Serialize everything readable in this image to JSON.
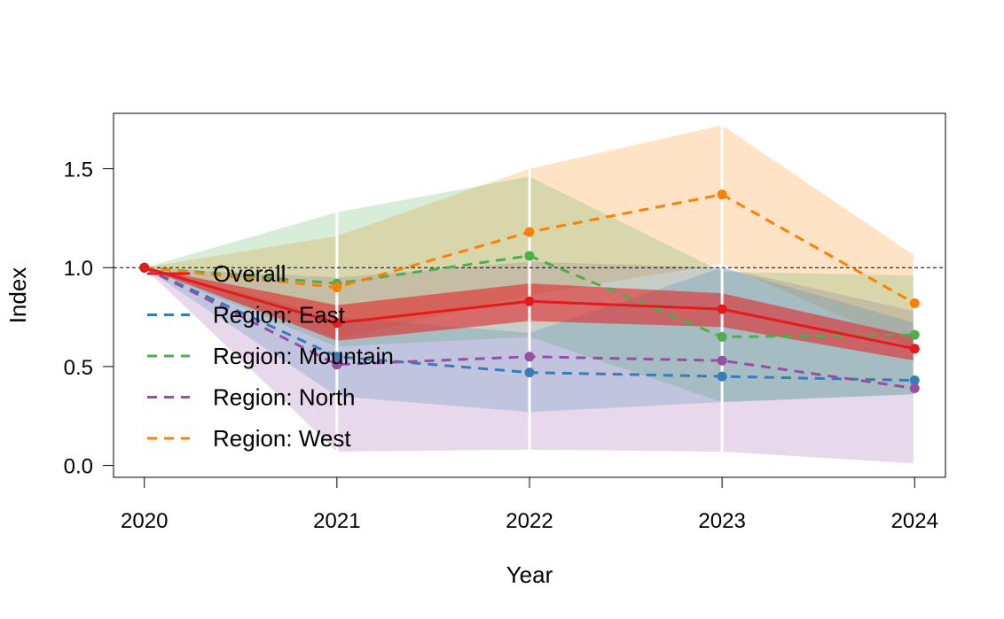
{
  "chart_data": {
    "type": "line",
    "title": "",
    "xlabel": "Year",
    "ylabel": "Index",
    "x": [
      2020,
      2021,
      2022,
      2023,
      2024
    ],
    "x_tick_labels": [
      "2020",
      "2021",
      "2022",
      "2023",
      "2024"
    ],
    "xlim": [
      2019.84,
      2024.16
    ],
    "ylim": [
      -0.06,
      1.78
    ],
    "y_ticks": [
      0.0,
      0.5,
      1.0,
      1.5
    ],
    "y_tick_labels": [
      "0.0",
      "0.5",
      "1.0",
      "1.5"
    ],
    "reference_line": 1.0,
    "grid": false,
    "legend_position": "center-left",
    "series": [
      {
        "name": "Overall",
        "color": "#E41A1C",
        "line": "solid",
        "values": [
          1.0,
          0.72,
          0.83,
          0.79,
          0.59
        ],
        "lower": [
          1.0,
          0.63,
          0.73,
          0.7,
          0.53
        ],
        "upper": [
          1.0,
          0.81,
          0.92,
          0.87,
          0.65
        ]
      },
      {
        "name": "Region: East",
        "color": "#377EB8",
        "line": "dashed",
        "values": [
          1.0,
          0.55,
          0.47,
          0.45,
          0.43
        ],
        "lower": [
          1.0,
          0.35,
          0.27,
          0.32,
          0.36
        ],
        "upper": [
          1.0,
          0.75,
          0.67,
          1.0,
          0.72
        ]
      },
      {
        "name": "Region: Mountain",
        "color": "#4DAF4A",
        "line": "dashed",
        "values": [
          1.0,
          0.92,
          1.06,
          0.65,
          0.66
        ],
        "lower": [
          1.0,
          0.6,
          0.65,
          0.32,
          0.36
        ],
        "upper": [
          1.0,
          1.28,
          1.46,
          0.98,
          0.96
        ]
      },
      {
        "name": "Region: North",
        "color": "#984EA3",
        "line": "dashed",
        "values": [
          1.0,
          0.51,
          0.55,
          0.53,
          0.39
        ],
        "lower": [
          1.0,
          0.07,
          0.08,
          0.07,
          0.01
        ],
        "upper": [
          1.0,
          0.95,
          1.03,
          1.0,
          0.78
        ]
      },
      {
        "name": "Region: West",
        "color": "#FF7F00",
        "line": "dashed",
        "values": [
          1.0,
          0.9,
          1.18,
          1.37,
          0.82
        ],
        "lower": [
          1.0,
          0.64,
          0.86,
          1.02,
          0.59
        ],
        "upper": [
          1.0,
          1.16,
          1.5,
          1.72,
          1.06
        ]
      }
    ]
  }
}
